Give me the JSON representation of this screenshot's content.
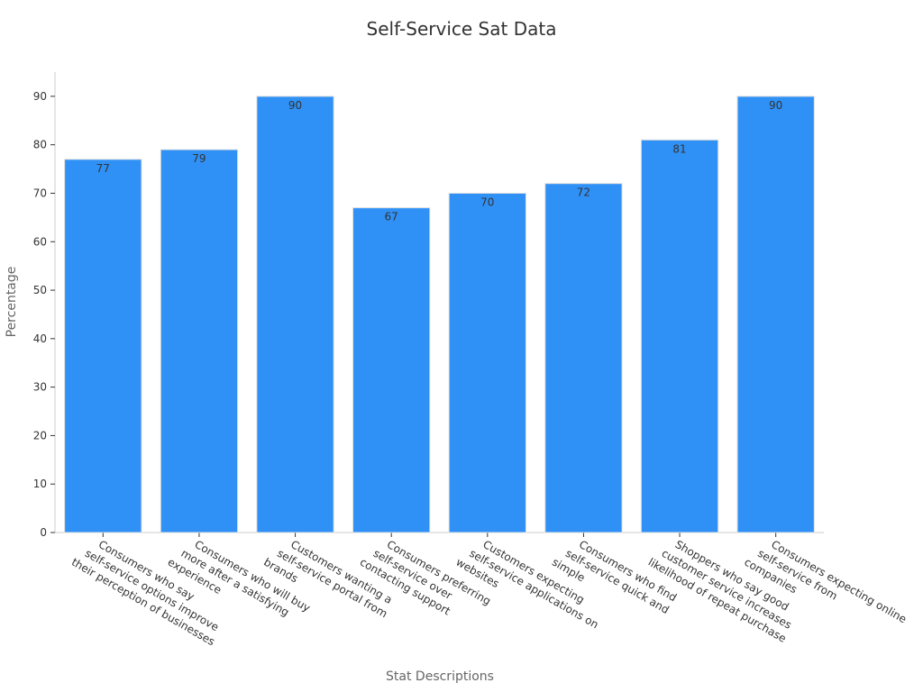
{
  "chart_data": {
    "type": "bar",
    "title": "Self-Service Sat Data",
    "xlabel": "Stat Descriptions",
    "ylabel": "Percentage",
    "ylim": [
      0,
      95
    ],
    "yticks": [
      0,
      10,
      20,
      30,
      40,
      50,
      60,
      70,
      80,
      90
    ],
    "grid": false,
    "bar_color": "#2f91f6",
    "categories": [
      [
        "Consumers who say",
        "self-service options improve",
        "their perception of businesses"
      ],
      [
        "Consumers who will buy",
        "more after a satisfying",
        "experience"
      ],
      [
        "Customers wanting a",
        "self-service portal from",
        "brands"
      ],
      [
        "Consumers preferring",
        "self-service over",
        "contacting support"
      ],
      [
        "Customers expecting",
        "self-service applications on",
        "websites"
      ],
      [
        "Consumers who find",
        "self-service quick and",
        "simple"
      ],
      [
        "Shoppers who say good",
        "customer service increases",
        "likelihood of repeat purchase"
      ],
      [
        "Consumers expecting online",
        "self-service from",
        "companies"
      ]
    ],
    "values": [
      77,
      79,
      90,
      67,
      70,
      72,
      81,
      90
    ]
  }
}
